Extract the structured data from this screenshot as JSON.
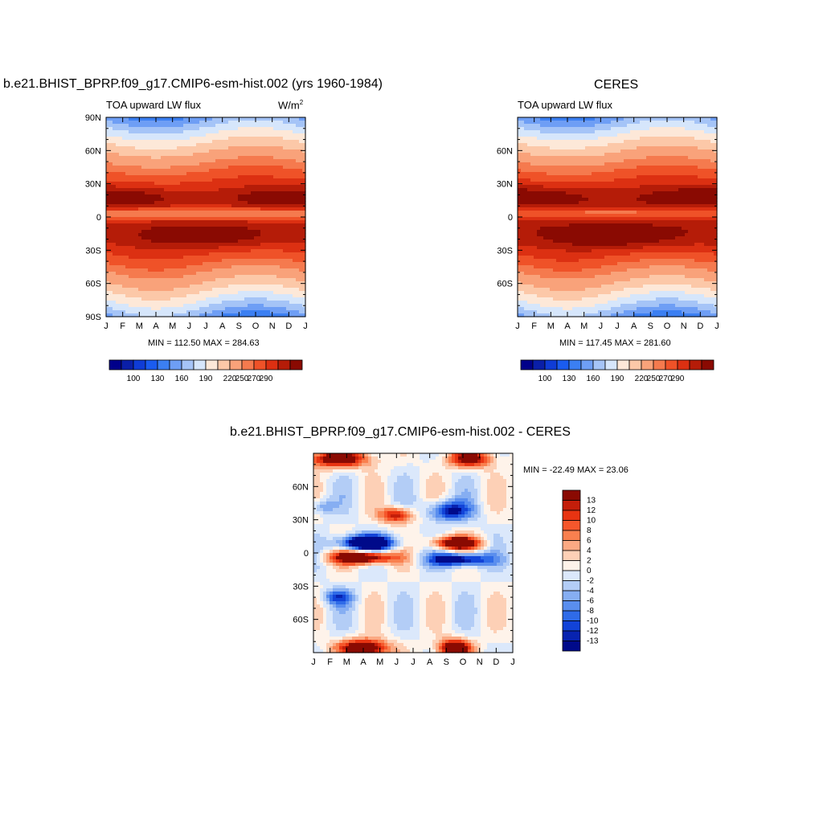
{
  "chart_data": [
    {
      "type": "heatmap",
      "id": "model",
      "title": "b.e21.BHIST_BPRP.f09_g17.CMIP6-esm-hist.002 (yrs 1960-1984)",
      "subtitle_left": "TOA upward LW flux",
      "units_base": "W/m",
      "units_exp": "2",
      "x_ticks": [
        "J",
        "F",
        "M",
        "A",
        "M",
        "J",
        "J",
        "A",
        "S",
        "O",
        "N",
        "D",
        "J"
      ],
      "y_ticks": [
        {
          "lat": 90,
          "label": "90N"
        },
        {
          "lat": 60,
          "label": "60N"
        },
        {
          "lat": 30,
          "label": "30N"
        },
        {
          "lat": 0,
          "label": "0"
        },
        {
          "lat": -30,
          "label": "30S"
        },
        {
          "lat": -60,
          "label": "60S"
        },
        {
          "lat": -90,
          "label": "90S"
        }
      ],
      "ylim": [
        -90,
        90
      ],
      "min_max_text": "MIN = 112.50  MAX = 284.63",
      "colorbar": {
        "orientation": "horizontal",
        "labels": [
          "100",
          "130",
          "160",
          "190",
          "220",
          "250",
          "270",
          "290"
        ],
        "colors": [
          "#00008a",
          "#0a1fa8",
          "#0f3cd6",
          "#1a5cf0",
          "#3b7ff2",
          "#6e9ef5",
          "#a5c4f7",
          "#d6e6fb",
          "#fde8d8",
          "#fcc8a8",
          "#f9a27a",
          "#f57a4e",
          "#ef5228",
          "#dc3012",
          "#b51c08",
          "#8a0a02"
        ]
      }
    },
    {
      "type": "heatmap",
      "id": "obs",
      "title": "CERES",
      "subtitle_left": "TOA upward LW flux",
      "x_ticks": [
        "J",
        "F",
        "M",
        "A",
        "M",
        "J",
        "J",
        "A",
        "S",
        "O",
        "N",
        "D",
        "J"
      ],
      "y_ticks": [
        {
          "lat": 60,
          "label": "60N"
        },
        {
          "lat": 30,
          "label": "30N"
        },
        {
          "lat": 0,
          "label": "0"
        },
        {
          "lat": -30,
          "label": "30S"
        },
        {
          "lat": -60,
          "label": "60S"
        }
      ],
      "ylim": [
        -90,
        90
      ],
      "min_max_text": "MIN = 117.45  MAX = 281.60",
      "colorbar": {
        "orientation": "horizontal",
        "labels": [
          "100",
          "130",
          "160",
          "190",
          "220",
          "250",
          "270",
          "290"
        ],
        "colors": [
          "#00008a",
          "#0a1fa8",
          "#0f3cd6",
          "#1a5cf0",
          "#3b7ff2",
          "#6e9ef5",
          "#a5c4f7",
          "#d6e6fb",
          "#fde8d8",
          "#fcc8a8",
          "#f9a27a",
          "#f57a4e",
          "#ef5228",
          "#dc3012",
          "#b51c08",
          "#8a0a02"
        ]
      }
    },
    {
      "type": "heatmap",
      "id": "diff",
      "title": "b.e21.BHIST_BPRP.f09_g17.CMIP6-esm-hist.002 - CERES",
      "x_ticks": [
        "J",
        "F",
        "M",
        "A",
        "M",
        "J",
        "J",
        "A",
        "S",
        "O",
        "N",
        "D",
        "J"
      ],
      "y_ticks": [
        {
          "lat": 60,
          "label": "60N"
        },
        {
          "lat": 30,
          "label": "30N"
        },
        {
          "lat": 0,
          "label": "0"
        },
        {
          "lat": -30,
          "label": "30S"
        },
        {
          "lat": -60,
          "label": "60S"
        }
      ],
      "ylim": [
        -90,
        90
      ],
      "min_max_text": "MIN = -22.49  MAX =  23.06",
      "colorbar": {
        "orientation": "vertical",
        "labels": [
          "13",
          "12",
          "10",
          "8",
          "6",
          "4",
          "2",
          "0",
          "-2",
          "-4",
          "-6",
          "-8",
          "-10",
          "-12",
          "-13"
        ],
        "colors": [
          "#8a0a02",
          "#c41e0a",
          "#e83412",
          "#f5572c",
          "#f9804f",
          "#fba983",
          "#fdd0b6",
          "#fef3ea",
          "#dbe8fb",
          "#b3cdf6",
          "#86aef2",
          "#5a8eee",
          "#2f6be8",
          "#1243d8",
          "#0823b0",
          "#000a8a"
        ]
      }
    }
  ]
}
